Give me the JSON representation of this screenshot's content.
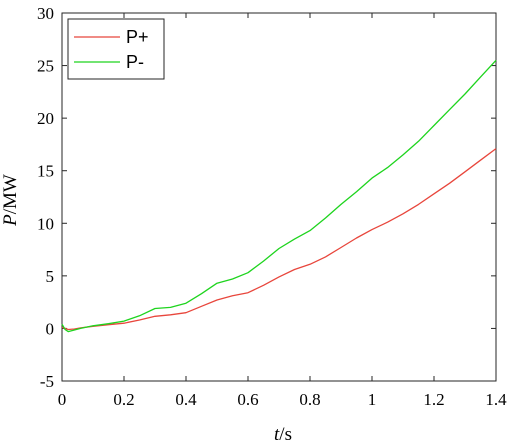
{
  "chart_data": {
    "type": "line",
    "xlabel_var": "t",
    "xlabel_unit": "/s",
    "ylabel_var": "P",
    "ylabel_unit": "/MW",
    "xlim": [
      0,
      1.4
    ],
    "ylim": [
      -5,
      30
    ],
    "xticks": [
      "0",
      "0.2",
      "0.4",
      "0.6",
      "0.8",
      "1",
      "1.2",
      "1.4"
    ],
    "yticks": [
      "-5",
      "0",
      "5",
      "10",
      "15",
      "20",
      "25",
      "30"
    ],
    "xtick_values": [
      0,
      0.2,
      0.4,
      0.6,
      0.8,
      1.0,
      1.2,
      1.4
    ],
    "ytick_values": [
      -5,
      0,
      5,
      10,
      15,
      20,
      25,
      30
    ],
    "grid": false,
    "legend_position": "top-left",
    "series": [
      {
        "name": "P+",
        "color": "#e8463c",
        "x": [
          0,
          0.01,
          0.02,
          0.04,
          0.06,
          0.1,
          0.15,
          0.2,
          0.25,
          0.3,
          0.35,
          0.4,
          0.45,
          0.5,
          0.55,
          0.6,
          0.65,
          0.7,
          0.75,
          0.8,
          0.85,
          0.9,
          0.95,
          1.0,
          1.05,
          1.1,
          1.15,
          1.2,
          1.25,
          1.3,
          1.35,
          1.4
        ],
        "y": [
          0.1,
          0.0,
          -0.1,
          -0.05,
          0.05,
          0.2,
          0.35,
          0.5,
          0.8,
          1.15,
          1.3,
          1.5,
          2.1,
          2.7,
          3.1,
          3.4,
          4.1,
          4.9,
          5.6,
          6.1,
          6.8,
          7.7,
          8.6,
          9.4,
          10.1,
          10.9,
          11.8,
          12.8,
          13.8,
          14.9,
          16.0,
          17.1
        ]
      },
      {
        "name": "P-",
        "color": "#1ed41e",
        "x": [
          0,
          0.01,
          0.02,
          0.04,
          0.06,
          0.1,
          0.15,
          0.2,
          0.25,
          0.3,
          0.35,
          0.4,
          0.45,
          0.5,
          0.55,
          0.6,
          0.65,
          0.7,
          0.75,
          0.8,
          0.85,
          0.9,
          0.95,
          1.0,
          1.05,
          1.1,
          1.15,
          1.2,
          1.25,
          1.3,
          1.35,
          1.4
        ],
        "y": [
          0.4,
          -0.1,
          -0.3,
          -0.15,
          0.0,
          0.25,
          0.45,
          0.7,
          1.2,
          1.9,
          2.0,
          2.4,
          3.3,
          4.3,
          4.7,
          5.3,
          6.4,
          7.6,
          8.5,
          9.3,
          10.5,
          11.8,
          13.0,
          14.3,
          15.3,
          16.5,
          17.8,
          19.3,
          20.8,
          22.3,
          23.9,
          25.5
        ]
      }
    ]
  }
}
